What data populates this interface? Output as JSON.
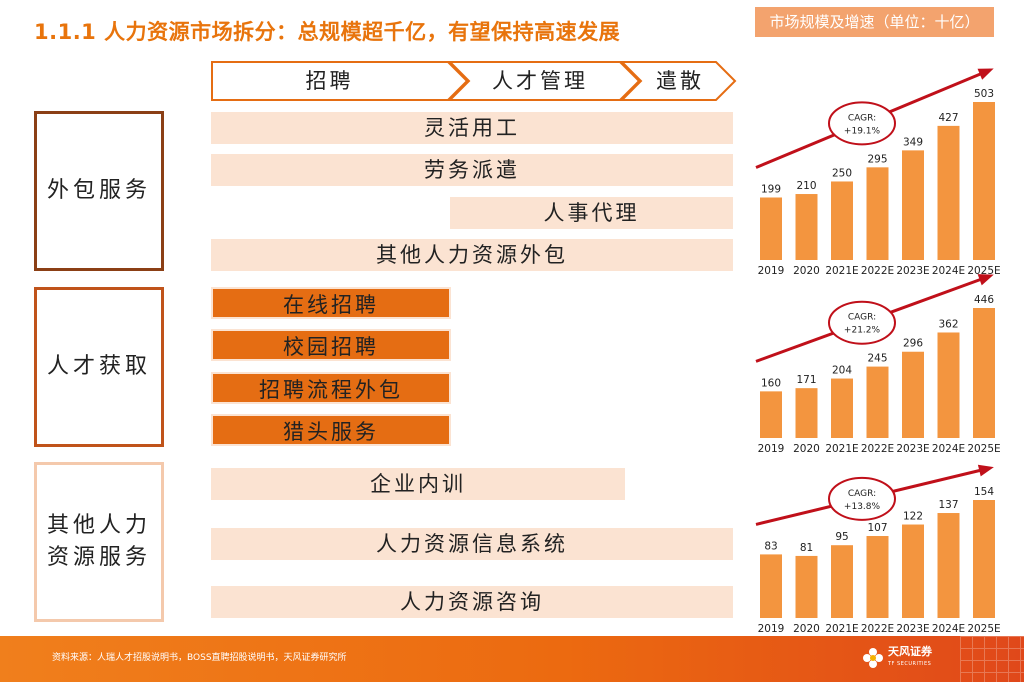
{
  "title": "1.1.1 人力资源市场拆分：总规模超千亿，有望保持高速发展",
  "chart_header": "市场规模及增速（单位：十亿）",
  "stages": [
    "招聘",
    "人才管理",
    "遣散"
  ],
  "categories": [
    {
      "label": "外包服务",
      "bars": [
        "灵活用工",
        "劳务派遣",
        "人事代理",
        "其他人力资源外包"
      ]
    },
    {
      "label": "人才获取",
      "bars": [
        "在线招聘",
        "校园招聘",
        "招聘流程外包",
        "猎头服务"
      ]
    },
    {
      "label": "其他人力资源服务",
      "line1": "其他人力",
      "line2": "资源服务",
      "bars": [
        "企业内训",
        "人力资源信息系统",
        "人力资源咨询"
      ]
    }
  ],
  "chart_data": [
    {
      "type": "bar",
      "name": "外包服务",
      "categories": [
        "2019",
        "2020",
        "2021E",
        "2022E",
        "2023E",
        "2024E",
        "2025E"
      ],
      "values": [
        199,
        210,
        250,
        295,
        349,
        427,
        503
      ],
      "annotation": [
        "CAGR:",
        "+19.1%"
      ]
    },
    {
      "type": "bar",
      "name": "人才获取",
      "categories": [
        "2019",
        "2020",
        "2021E",
        "2022E",
        "2023E",
        "2024E",
        "2025E"
      ],
      "values": [
        160,
        171,
        204,
        245,
        296,
        362,
        446
      ],
      "annotation": [
        "CAGR:",
        "+21.2%"
      ]
    },
    {
      "type": "bar",
      "name": "其他人力资源服务",
      "categories": [
        "2019",
        "2020",
        "2021E",
        "2022E",
        "2023E",
        "2024E",
        "2025E"
      ],
      "values": [
        83,
        81,
        95,
        107,
        122,
        137,
        154
      ],
      "annotation": [
        "CAGR:",
        "+13.8%"
      ]
    }
  ],
  "footer": {
    "source": "资料来源：人瑞人才招股说明书，BOSS直聘招股说明书，天风证券研究所",
    "logo": "天风证券",
    "logo_sub": "TF SECURITIES"
  },
  "colors": {
    "accent": "#e8740c",
    "bar": "#f3953f",
    "light": "#fbe3d2",
    "dark": "#e56d13",
    "arrow": "#c0101a"
  }
}
